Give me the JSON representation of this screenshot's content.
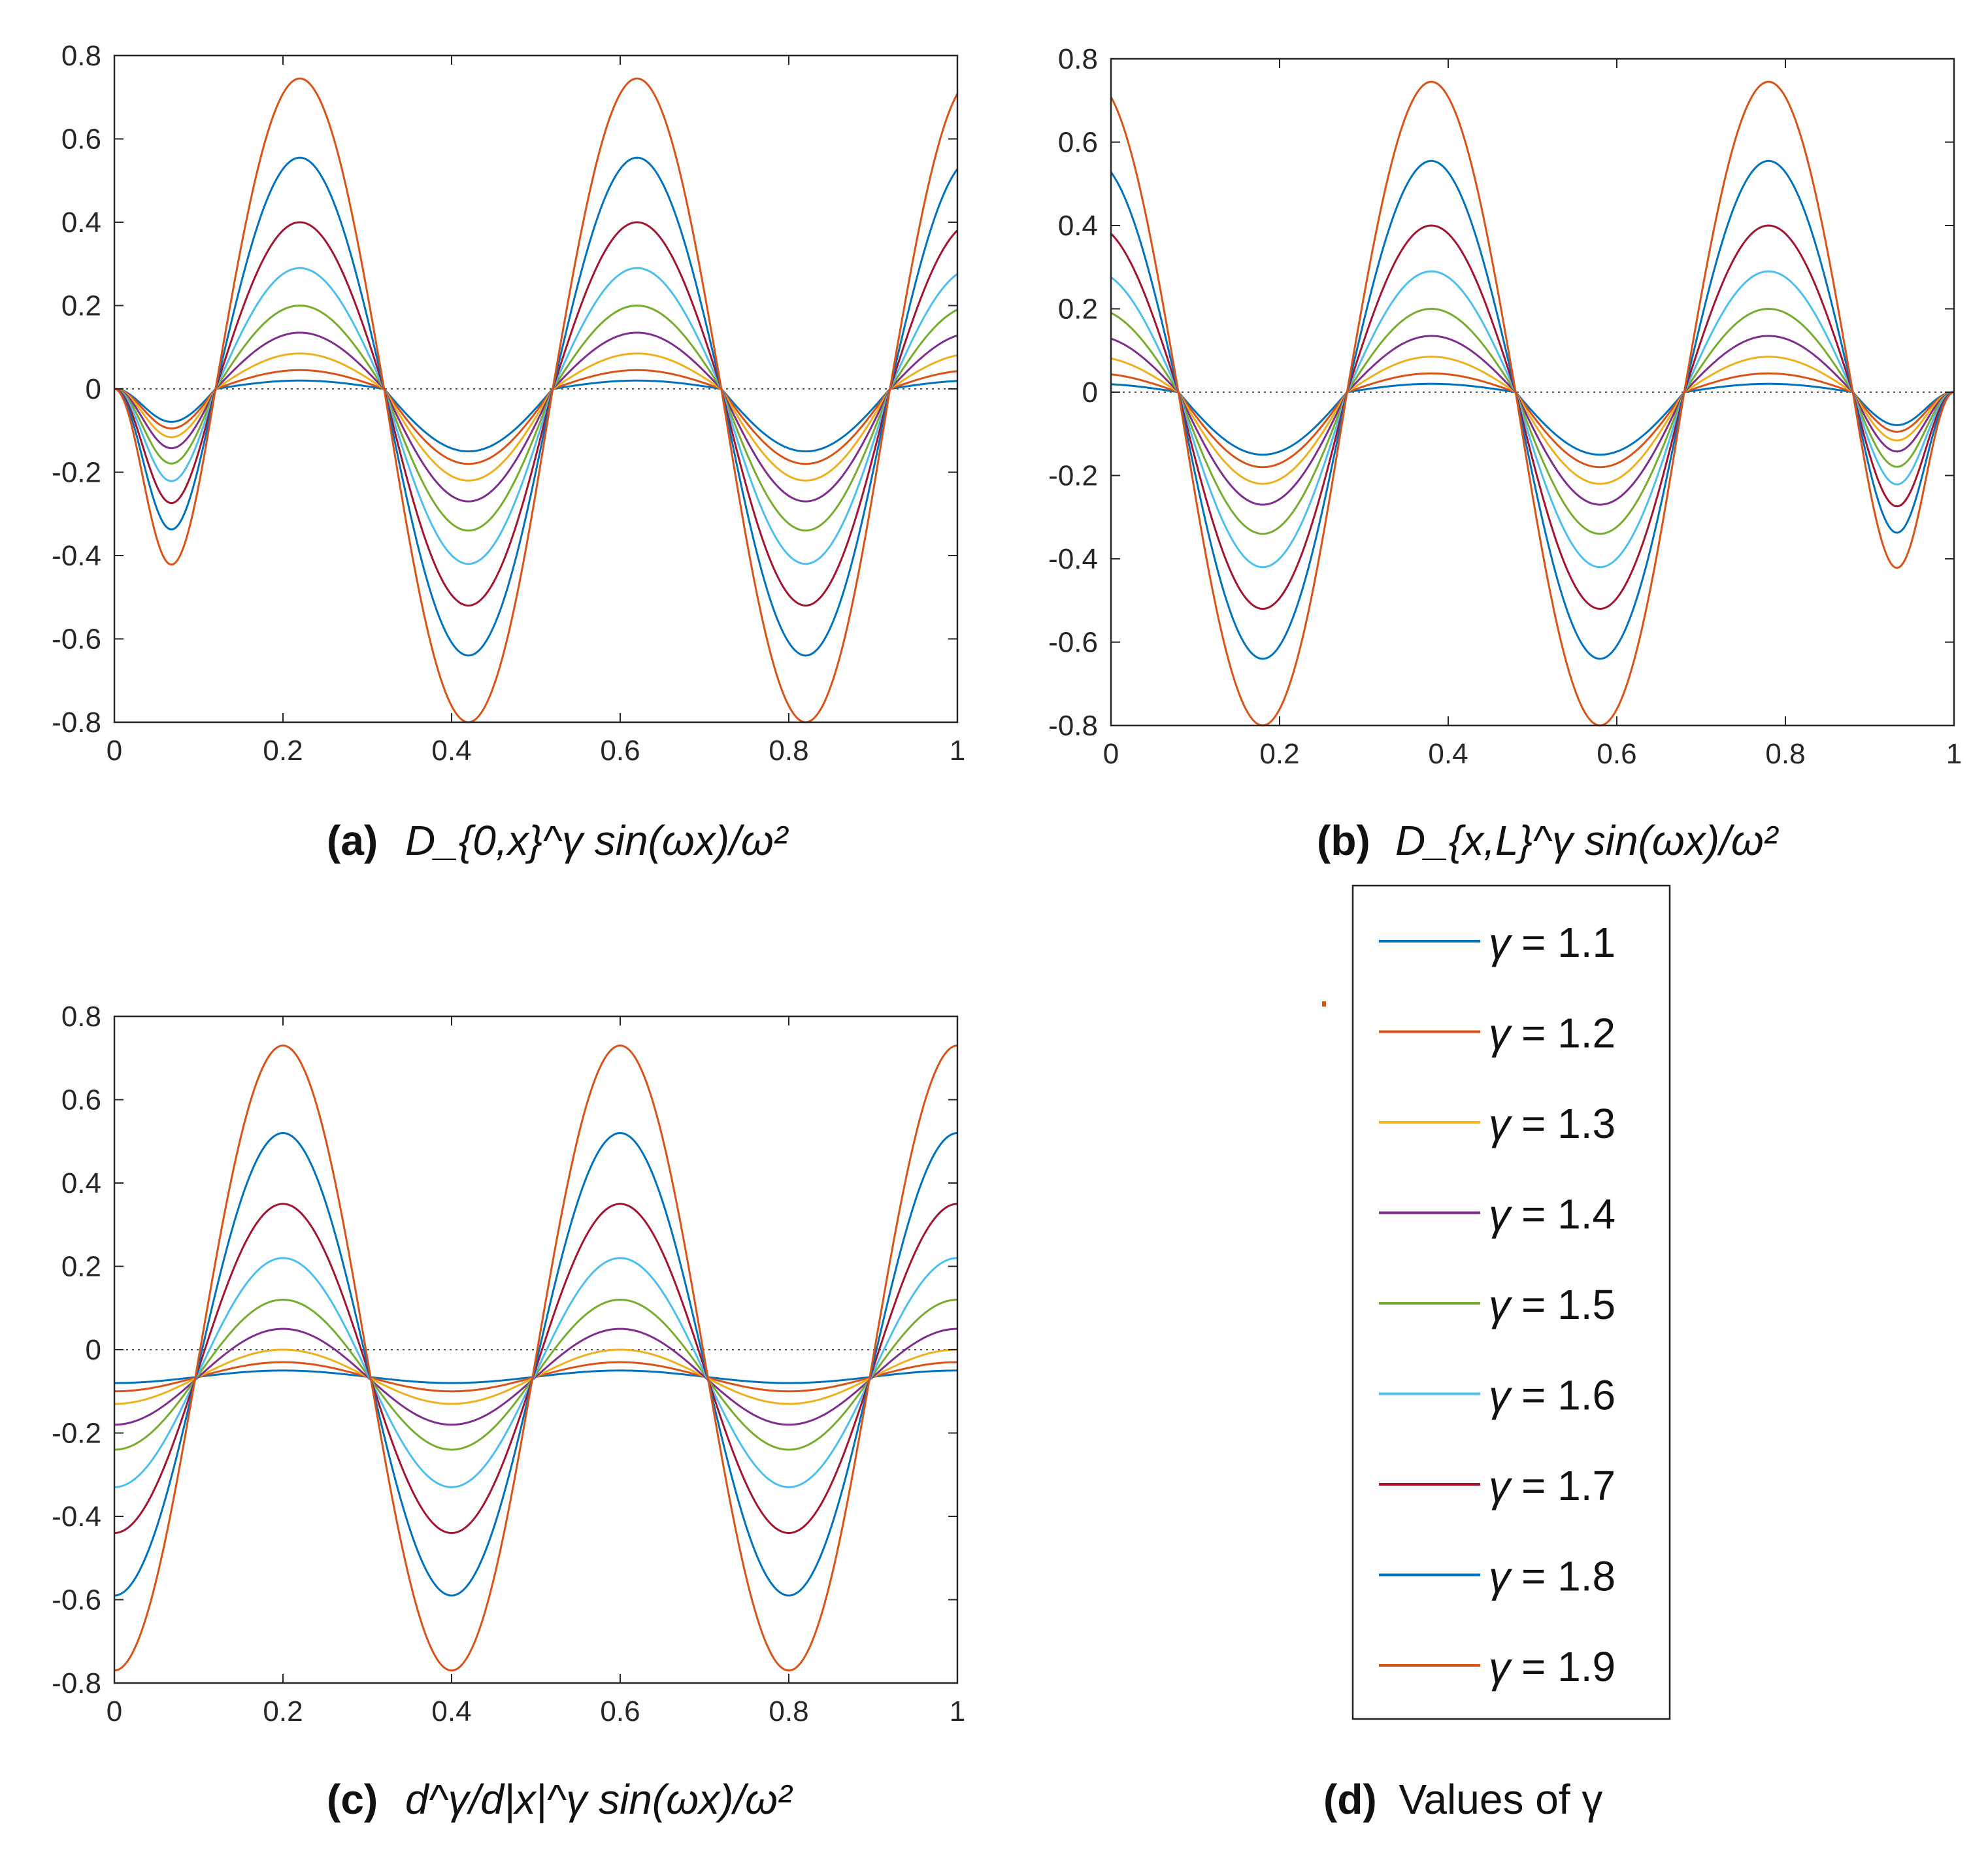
{
  "chart_data": [
    {
      "id": "a",
      "type": "line",
      "caption": {
        "label": "(a)",
        "formula": "D_{0,x}^γ sin(ωx)/ω²"
      },
      "xlim": [
        0,
        1
      ],
      "ylim": [
        -0.8,
        0.8
      ],
      "xticks": [
        0,
        0.2,
        0.4,
        0.6,
        0.8,
        1
      ],
      "xtick_labels": [
        "0",
        "0.2",
        "0.4",
        "0.6",
        "0.8",
        "1"
      ],
      "yticks": [
        -0.8,
        -0.6,
        -0.4,
        -0.2,
        0,
        0.2,
        0.4,
        0.6,
        0.8
      ],
      "ytick_labels": [
        "-0.8",
        "-0.6",
        "-0.4",
        "-0.2",
        "0",
        "0.2",
        "0.4",
        "0.6",
        "0.8"
      ],
      "zero_line": "dotted",
      "model": "left_riemann_liouville",
      "series": [
        {
          "name": "γ = 1.1",
          "gamma": 1.1,
          "peak_first": 0.02,
          "peak_second": 0.02,
          "trough": -0.15
        },
        {
          "name": "γ = 1.2",
          "gamma": 1.2,
          "peak_first": 0.04,
          "peak_second": 0.05,
          "trough": -0.18
        },
        {
          "name": "γ = 1.3",
          "gamma": 1.3,
          "peak_first": 0.08,
          "peak_second": 0.09,
          "trough": -0.22
        },
        {
          "name": "γ = 1.4",
          "gamma": 1.4,
          "peak_first": 0.13,
          "peak_second": 0.14,
          "trough": -0.27
        },
        {
          "name": "γ = 1.5",
          "gamma": 1.5,
          "peak_first": 0.19,
          "peak_second": 0.21,
          "trough": -0.34
        },
        {
          "name": "γ = 1.6",
          "gamma": 1.6,
          "peak_first": 0.28,
          "peak_second": 0.3,
          "trough": -0.42
        },
        {
          "name": "γ = 1.7",
          "gamma": 1.7,
          "peak_first": 0.39,
          "peak_second": 0.41,
          "trough": -0.52
        },
        {
          "name": "γ = 1.8",
          "gamma": 1.8,
          "peak_first": 0.55,
          "peak_second": 0.56,
          "trough": -0.64
        },
        {
          "name": "γ = 1.9",
          "gamma": 1.9,
          "peak_first": 0.74,
          "peak_second": 0.75,
          "trough": -0.8
        }
      ]
    },
    {
      "id": "b",
      "type": "line",
      "caption": {
        "label": "(b)",
        "formula": "D_{x,L}^γ sin(ωx)/ω²"
      },
      "xlim": [
        0,
        1
      ],
      "ylim": [
        -0.8,
        0.8
      ],
      "xticks": [
        0,
        0.2,
        0.4,
        0.6,
        0.8,
        1
      ],
      "xtick_labels": [
        "0",
        "0.2",
        "0.4",
        "0.6",
        "0.8",
        "1"
      ],
      "yticks": [
        -0.8,
        -0.6,
        -0.4,
        -0.2,
        0,
        0.2,
        0.4,
        0.6,
        0.8
      ],
      "ytick_labels": [
        "-0.8",
        "-0.6",
        "-0.4",
        "-0.2",
        "0",
        "0.2",
        "0.4",
        "0.6",
        "0.8"
      ],
      "zero_line": "dotted",
      "model": "right_riemann_liouville",
      "series": [
        {
          "name": "γ = 1.1",
          "gamma": 1.1,
          "peak_first": 0.02,
          "peak_second": 0.02,
          "trough": -0.15
        },
        {
          "name": "γ = 1.2",
          "gamma": 1.2,
          "peak_first": 0.05,
          "peak_second": 0.04,
          "trough": -0.18
        },
        {
          "name": "γ = 1.3",
          "gamma": 1.3,
          "peak_first": 0.09,
          "peak_second": 0.08,
          "trough": -0.22
        },
        {
          "name": "γ = 1.4",
          "gamma": 1.4,
          "peak_first": 0.14,
          "peak_second": 0.13,
          "trough": -0.27
        },
        {
          "name": "γ = 1.5",
          "gamma": 1.5,
          "peak_first": 0.21,
          "peak_second": 0.19,
          "trough": -0.34
        },
        {
          "name": "γ = 1.6",
          "gamma": 1.6,
          "peak_first": 0.3,
          "peak_second": 0.28,
          "trough": -0.42
        },
        {
          "name": "γ = 1.7",
          "gamma": 1.7,
          "peak_first": 0.41,
          "peak_second": 0.39,
          "trough": -0.52
        },
        {
          "name": "γ = 1.8",
          "gamma": 1.8,
          "peak_first": 0.56,
          "peak_second": 0.55,
          "trough": -0.64
        },
        {
          "name": "γ = 1.9",
          "gamma": 1.9,
          "peak_first": 0.75,
          "peak_second": 0.74,
          "trough": -0.8
        }
      ]
    },
    {
      "id": "c",
      "type": "line",
      "caption": {
        "label": "(c)",
        "formula": "d^γ/d|x|^γ sin(ωx)/ω²"
      },
      "xlim": [
        0,
        1
      ],
      "ylim": [
        -0.8,
        0.8
      ],
      "xticks": [
        0,
        0.2,
        0.4,
        0.6,
        0.8,
        1
      ],
      "xtick_labels": [
        "0",
        "0.2",
        "0.4",
        "0.6",
        "0.8",
        "1"
      ],
      "yticks": [
        -0.8,
        -0.6,
        -0.4,
        -0.2,
        0,
        0.2,
        0.4,
        0.6,
        0.8
      ],
      "ytick_labels": [
        "-0.8",
        "-0.6",
        "-0.4",
        "-0.2",
        "0",
        "0.2",
        "0.4",
        "0.6",
        "0.8"
      ],
      "zero_line": "dotted",
      "model": "riesz",
      "series": [
        {
          "name": "γ = 1.1",
          "gamma": 1.1,
          "peak": -0.05,
          "trough": -0.08
        },
        {
          "name": "γ = 1.2",
          "gamma": 1.2,
          "peak": -0.03,
          "trough": -0.1
        },
        {
          "name": "γ = 1.3",
          "gamma": 1.3,
          "peak": 0.0,
          "trough": -0.13
        },
        {
          "name": "γ = 1.4",
          "gamma": 1.4,
          "peak": 0.05,
          "trough": -0.18
        },
        {
          "name": "γ = 1.5",
          "gamma": 1.5,
          "peak": 0.12,
          "trough": -0.24
        },
        {
          "name": "γ = 1.6",
          "gamma": 1.6,
          "peak": 0.22,
          "trough": -0.33
        },
        {
          "name": "γ = 1.7",
          "gamma": 1.7,
          "peak": 0.35,
          "trough": -0.44
        },
        {
          "name": "γ = 1.8",
          "gamma": 1.8,
          "peak": 0.52,
          "trough": -0.59
        },
        {
          "name": "γ = 1.9",
          "gamma": 1.9,
          "peak": 0.73,
          "trough": -0.77
        }
      ]
    }
  ],
  "legend": {
    "caption": {
      "label": "(d)",
      "text": "Values of γ"
    },
    "entries": [
      {
        "symbol": "γ",
        "text": "= 1.1",
        "color": "#0072BD"
      },
      {
        "symbol": "γ",
        "text": "= 1.2",
        "color": "#D95319"
      },
      {
        "symbol": "γ",
        "text": "= 1.3",
        "color": "#EDB120"
      },
      {
        "symbol": "γ",
        "text": "= 1.4",
        "color": "#7E2F8E"
      },
      {
        "symbol": "γ",
        "text": "= 1.5",
        "color": "#77AC30"
      },
      {
        "symbol": "γ",
        "text": "= 1.6",
        "color": "#4DBEEE"
      },
      {
        "symbol": "γ",
        "text": "= 1.7",
        "color": "#A2142F"
      },
      {
        "symbol": "γ",
        "text": "= 1.8",
        "color": "#0072BD"
      },
      {
        "symbol": "γ",
        "text": "= 1.9",
        "color": "#D95319"
      }
    ]
  },
  "colors": {
    "axis": "#262626",
    "zero_line": "#555555",
    "series": [
      "#0072BD",
      "#D95319",
      "#EDB120",
      "#7E2F8E",
      "#77AC30",
      "#4DBEEE",
      "#A2142F",
      "#0072BD",
      "#D95319"
    ]
  }
}
